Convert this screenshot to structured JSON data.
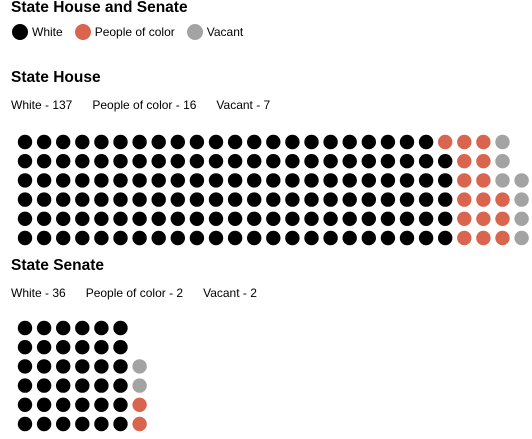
{
  "legend": {
    "title": "State House and Senate",
    "items": [
      {
        "label": "White",
        "color": "#000000"
      },
      {
        "label": "People of color",
        "color": "#d9654f"
      },
      {
        "label": "Vacant",
        "color": "#a3a3a3"
      }
    ]
  },
  "house": {
    "title": "State House",
    "counts": [
      "White - 137",
      "People of color - 16",
      "Vacant - 7"
    ]
  },
  "senate": {
    "title": "State Senate",
    "counts": [
      "White - 36",
      "People of color - 2",
      "Vacant - 2"
    ]
  },
  "chart_data": [
    {
      "type": "waffle",
      "title": "State House",
      "rows": 6,
      "categories": [
        "White",
        "People of color",
        "Vacant"
      ],
      "values": [
        137,
        16,
        7
      ],
      "colors": [
        "#000000",
        "#d9654f",
        "#a3a3a3"
      ]
    },
    {
      "type": "waffle",
      "title": "State Senate",
      "rows": 6,
      "categories": [
        "White",
        "People of color",
        "Vacant"
      ],
      "values": [
        36,
        2,
        2
      ],
      "colors": [
        "#000000",
        "#d9654f",
        "#a3a3a3"
      ]
    }
  ]
}
